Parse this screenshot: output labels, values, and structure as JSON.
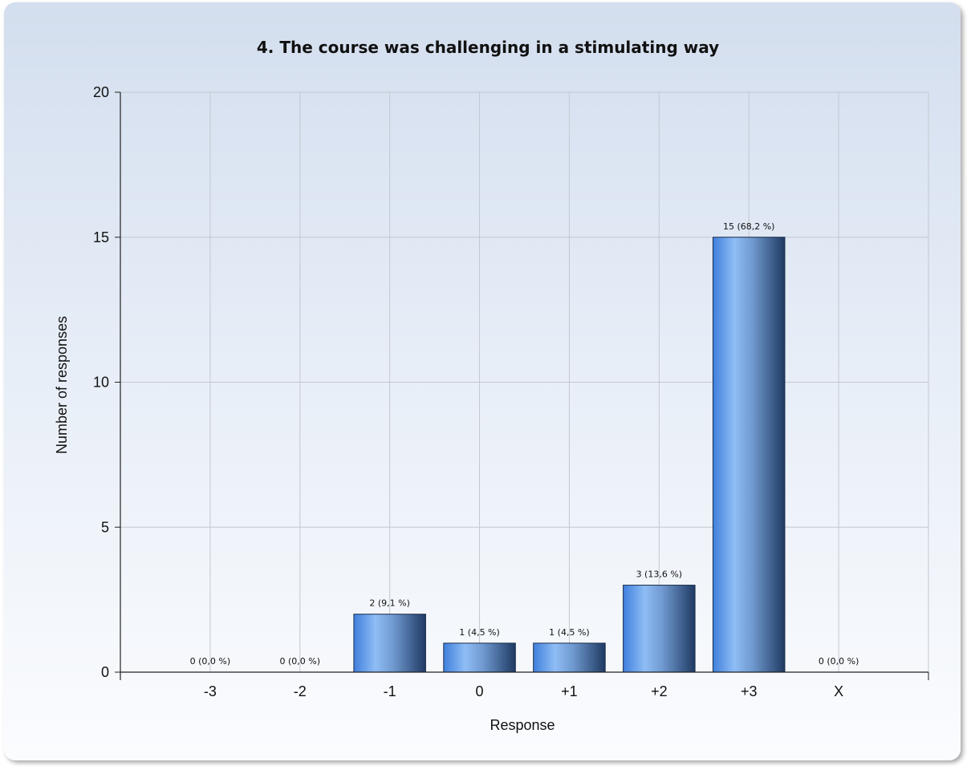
{
  "chart_data": {
    "type": "bar",
    "title": "4. The course was challenging in a stimulating way",
    "xlabel": "Response",
    "ylabel": "Number of responses",
    "categories": [
      "-3",
      "-2",
      "-1",
      "0",
      "+1",
      "+2",
      "+3",
      "X"
    ],
    "values": [
      0,
      0,
      2,
      1,
      1,
      3,
      15,
      0
    ],
    "data_labels": [
      "0 (0,0 %)",
      "0 (0,0 %)",
      "2 (9,1 %)",
      "1 (4,5 %)",
      "1 (4,5 %)",
      "3 (13,6 %)",
      "15 (68,2 %)",
      "0 (0,0 %)"
    ],
    "ylim": [
      0,
      20
    ],
    "yticks": [
      0,
      5,
      10,
      15,
      20
    ],
    "grid": true,
    "bar_color": "#4a86d8"
  }
}
